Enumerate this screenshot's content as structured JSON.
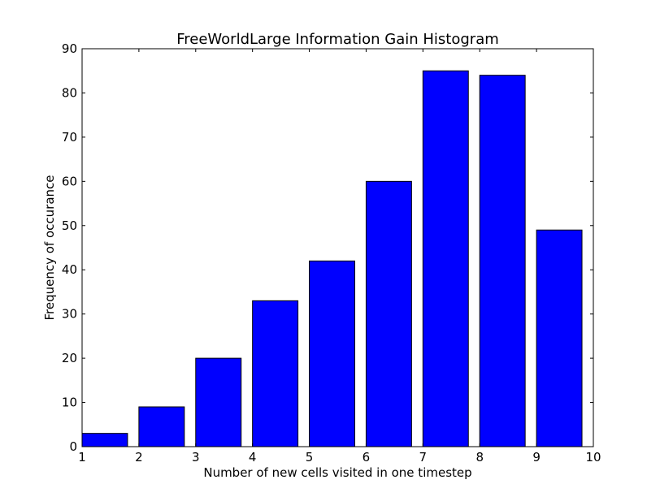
{
  "chart_data": {
    "type": "bar",
    "title": "FreeWorldLarge Information Gain Histogram",
    "xlabel": "Number of new cells visited in one timestep",
    "ylabel": "Frequency of occurance",
    "xlim": [
      1,
      10
    ],
    "ylim": [
      0,
      90
    ],
    "x_ticks": [
      "1",
      "2",
      "3",
      "4",
      "5",
      "6",
      "7",
      "8",
      "9",
      "10"
    ],
    "y_ticks": [
      "0",
      "10",
      "20",
      "30",
      "40",
      "50",
      "60",
      "70",
      "80",
      "90"
    ],
    "bin_edges": [
      1,
      2,
      3,
      4,
      5,
      6,
      7,
      8,
      9,
      10
    ],
    "bar_width_fraction": 0.8,
    "values": [
      3,
      9,
      20,
      33,
      42,
      60,
      85,
      84,
      49
    ],
    "grid": false,
    "legend": "none",
    "bar_color": "#0000ff",
    "edge_color": "#000000"
  }
}
